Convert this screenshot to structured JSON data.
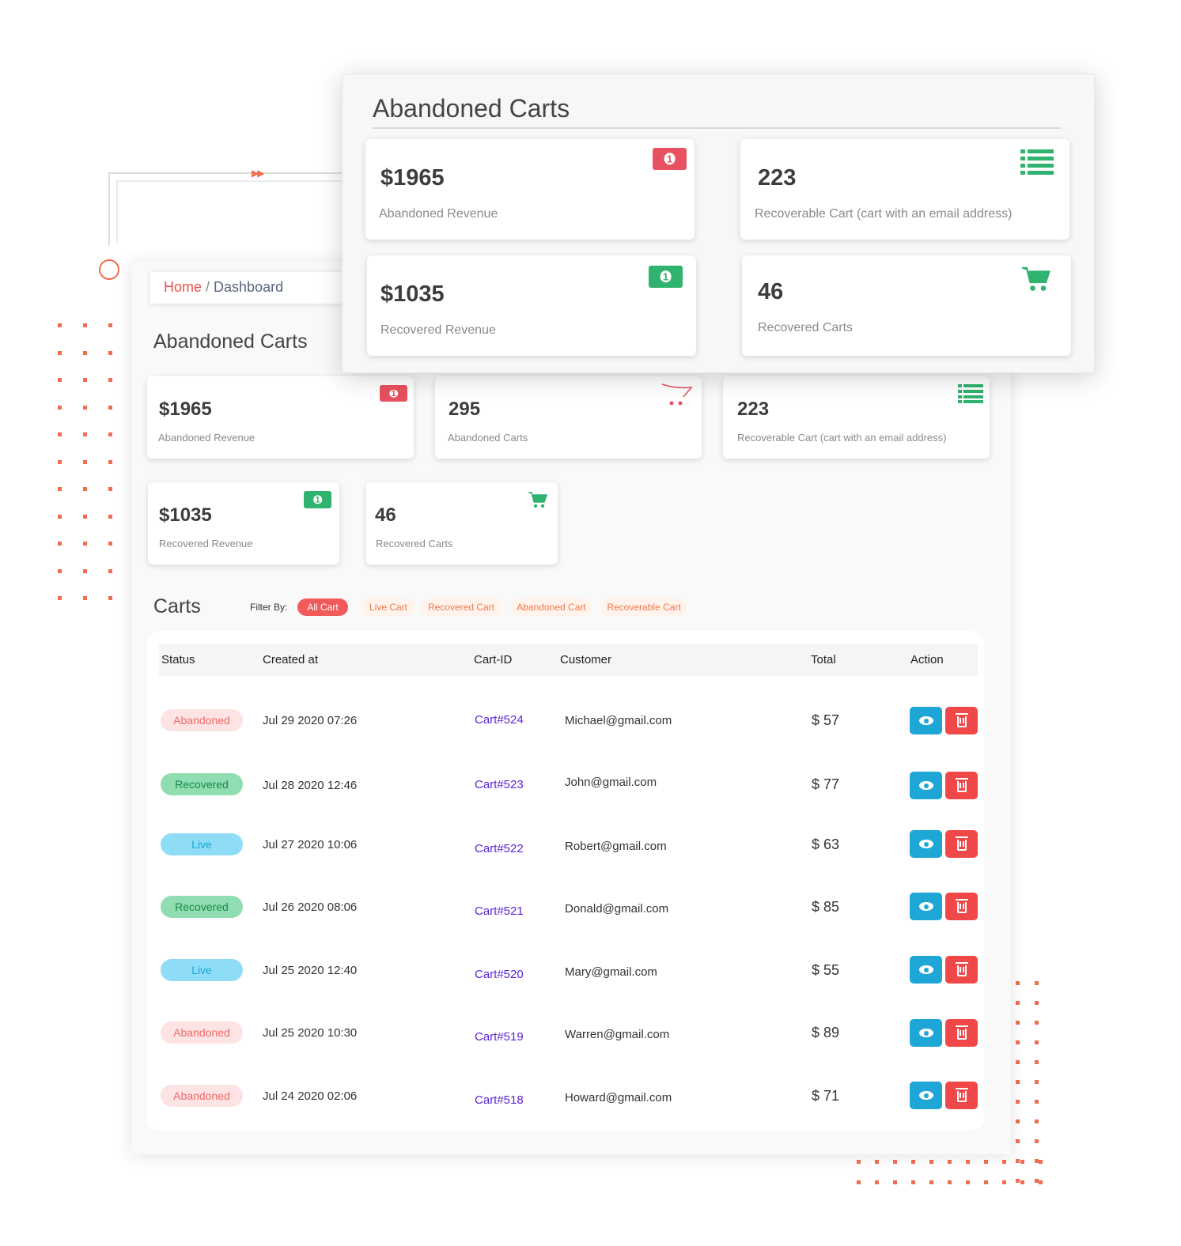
{
  "breadcrumb": {
    "home": "Home",
    "separator": " / ",
    "current": "Dashboard"
  },
  "page_title": "Abandoned Carts",
  "stats": [
    {
      "id": "abandoned-revenue",
      "value": "$1965",
      "label": "Abandoned Revenue",
      "icon": "money-icon",
      "color": "#e8515f"
    },
    {
      "id": "abandoned-carts",
      "value": "295",
      "label": "Abandoned Carts",
      "icon": "cart-outline-icon",
      "color": "#e8515f"
    },
    {
      "id": "recoverable-cart",
      "value": "223",
      "label": "Recoverable Cart (cart with an email address)",
      "icon": "list-icon",
      "color": "#2fb36e"
    },
    {
      "id": "recovered-revenue",
      "value": "$1035",
      "label": "Recovered Revenue",
      "icon": "money-icon",
      "color": "#2fb36e"
    },
    {
      "id": "recovered-carts",
      "value": "46",
      "label": "Recovered Carts",
      "icon": "cart-icon",
      "color": "#2fb36e"
    }
  ],
  "overlay": {
    "title": "Abandoned Carts",
    "stats": [
      {
        "value": "$1965",
        "label": "Abandoned Revenue",
        "icon": "money-icon"
      },
      {
        "value": "223",
        "label": "Recoverable Cart (cart with an email address)",
        "icon": "list-icon"
      },
      {
        "value": "$1035",
        "label": "Recovered Revenue",
        "icon": "money-icon"
      },
      {
        "value": "46",
        "label": "Recovered Carts",
        "icon": "cart-icon"
      }
    ]
  },
  "carts": {
    "title": "Carts",
    "filter_label": "Filter By:",
    "filters": [
      "All Cart",
      "Live Cart",
      "Recovered Cart",
      "Abandoned Cart",
      "Recoverable Cart"
    ],
    "active_filter": "All Cart",
    "columns": [
      "Status",
      "Created at",
      "Cart-ID",
      "Customer",
      "Total",
      "Action"
    ],
    "rows": [
      {
        "status": "Abandoned",
        "created": "Jul 29 2020 07:26",
        "cart_id": "Cart#524",
        "customer": "Michael@gmail.com",
        "total": "$ 57"
      },
      {
        "status": "Recovered",
        "created": "Jul 28 2020 12:46",
        "cart_id": "Cart#523",
        "customer": "John@gmail.com",
        "total": "$ 77"
      },
      {
        "status": "Live",
        "created": "Jul 27 2020 10:06",
        "cart_id": "Cart#522",
        "customer": "Robert@gmail.com",
        "total": "$ 63"
      },
      {
        "status": "Recovered",
        "created": "Jul 26 2020 08:06",
        "cart_id": "Cart#521",
        "customer": "Donald@gmail.com",
        "total": "$ 85"
      },
      {
        "status": "Live",
        "created": "Jul 25 2020 12:40",
        "cart_id": "Cart#520",
        "customer": "Mary@gmail.com",
        "total": "$ 55"
      },
      {
        "status": "Abandoned",
        "created": "Jul 25 2020 10:30",
        "cart_id": "Cart#519",
        "customer": "Warren@gmail.com",
        "total": "$ 89"
      },
      {
        "status": "Abandoned",
        "created": "Jul 24 2020 02:06",
        "cart_id": "Cart#518",
        "customer": "Howard@gmail.com",
        "total": "$ 71"
      }
    ],
    "actions": {
      "view_icon": "eye-icon",
      "delete_icon": "trash-icon"
    }
  },
  "colors": {
    "accent": "#f26d4f",
    "abandoned": "#f06b6b",
    "recovered": "#178a4b",
    "live": "#1aa9d8",
    "view_button": "#1ea6d6",
    "delete_button": "#f04848",
    "cart_id": "#5b23d6"
  }
}
